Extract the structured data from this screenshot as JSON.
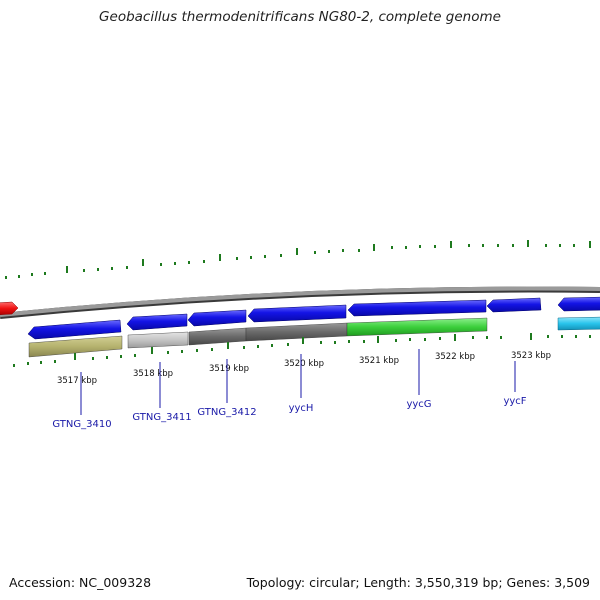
{
  "title": "Geobacillus thermodenitrificans NG80-2, complete genome",
  "ticks": [
    {
      "label": "3517 kbp"
    },
    {
      "label": "3518 kbp"
    },
    {
      "label": "3519 kbp"
    },
    {
      "label": "3520 kbp"
    },
    {
      "label": "3521 kbp"
    },
    {
      "label": "3522 kbp"
    },
    {
      "label": "3523 kbp"
    }
  ],
  "genes": [
    {
      "name": "GTNG_3410",
      "color": "#b5b26e"
    },
    {
      "name": "GTNG_3411",
      "color": "#c4c4c4"
    },
    {
      "name": "GTNG_3412",
      "color": "#6a6a6a"
    },
    {
      "name": "yycH",
      "color": "#6a6a6a"
    },
    {
      "name": "yycG",
      "color": "#3ccf3c"
    },
    {
      "name": "yycF",
      "color": "#3ccf3c"
    }
  ],
  "colors": {
    "cds_arrow": "#1010e0",
    "tick_marks": "#1e7a1e",
    "backbone": "#8c8c8c",
    "red_feature": "#ee1111",
    "cyan_feature": "#29c4ec",
    "label_text": "#1a1aa8"
  },
  "footer": {
    "accession": "Accession: NC_009328",
    "summary": "Topology: circular; Length: 3,550,319 bp; Genes: 3,509"
  }
}
